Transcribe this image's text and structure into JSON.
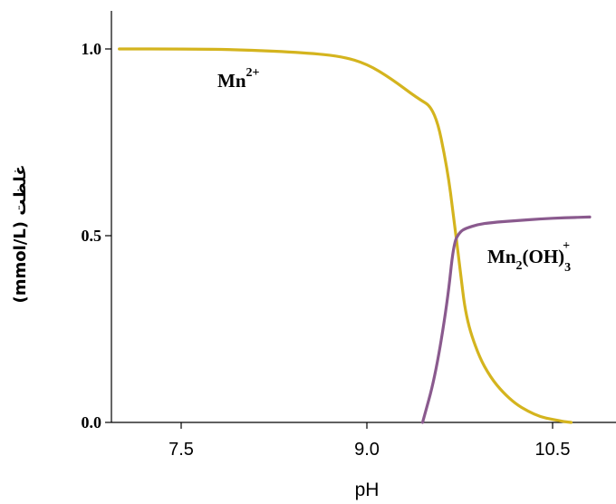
{
  "chart_data": {
    "type": "line",
    "title": "",
    "xlabel": "pH",
    "ylabel": "غلظت (mmol/L)",
    "xlim": [
      7.0,
      10.8
    ],
    "ylim": [
      0.0,
      1.0
    ],
    "x_ticks": [
      "7.5",
      "9.0",
      "10.5"
    ],
    "y_ticks": [
      "0.0",
      "0.5",
      "1.0"
    ],
    "grid": false,
    "series": [
      {
        "name": "Mn2+",
        "color": "#d4b41e",
        "x": [
          7.0,
          7.5,
          8.0,
          8.5,
          8.8,
          9.0,
          9.2,
          9.4,
          9.55,
          9.65,
          9.7,
          9.75,
          9.8,
          9.9,
          10.0,
          10.1,
          10.2,
          10.3,
          10.4,
          10.5,
          10.6,
          10.65
        ],
        "y": [
          1.0,
          1.0,
          0.998,
          0.99,
          0.98,
          0.96,
          0.92,
          0.87,
          0.84,
          0.68,
          0.55,
          0.42,
          0.28,
          0.18,
          0.12,
          0.08,
          0.05,
          0.03,
          0.015,
          0.008,
          0.002,
          0.0
        ]
      },
      {
        "name": "Mn2(OH)3+",
        "color": "#8a5a8e",
        "x": [
          9.45,
          9.55,
          9.65,
          9.7,
          9.75,
          9.8,
          9.9,
          10.0,
          10.2,
          10.4,
          10.6,
          10.8
        ],
        "y": [
          0.0,
          0.12,
          0.32,
          0.48,
          0.51,
          0.52,
          0.53,
          0.535,
          0.54,
          0.545,
          0.548,
          0.55
        ]
      }
    ],
    "annotations": [
      {
        "base": "Mn",
        "sup": "2+",
        "x": 8.1,
        "y": 0.88
      },
      {
        "base": "Mn",
        "sub1": "2",
        "mid": "(OH)",
        "sub2": "3",
        "sup": "+",
        "x": 9.95,
        "y": 0.42
      }
    ]
  }
}
